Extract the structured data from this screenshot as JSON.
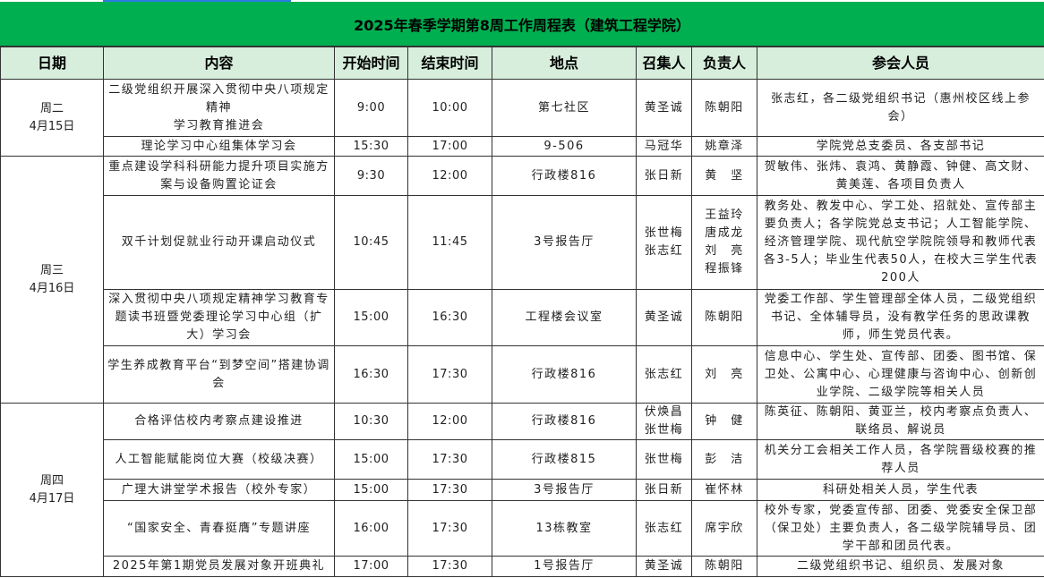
{
  "title": "2025年春季学期第8周工作周程表（建筑工程学院）",
  "headers": [
    "日期",
    "内容",
    "开始时间",
    "结束时间",
    "地点",
    "召集人",
    "负责人",
    "参会人员"
  ],
  "colors": {
    "title_bg": "#00b050",
    "header_bg": "#d6eedb",
    "selection": "#2a7be4"
  },
  "days": [
    {
      "date": "周二\n4月15日",
      "rows": [
        {
          "content": "二级党组织开展深入贯彻中央八项规定精神\n学习教育推进会",
          "start": "9:00",
          "end": "10:00",
          "place": "第七社区",
          "convener": "黄圣诚",
          "lead": "陈朝阳",
          "attendees": "张志红，各二级党组织书记（惠州校区线上参会）"
        },
        {
          "content": "理论学习中心组集体学习会",
          "start": "15:30",
          "end": "17:00",
          "place": "9-506",
          "convener": "马冠华",
          "lead": "姚章泽",
          "attendees": "学院党总支委员、各支部书记"
        }
      ]
    },
    {
      "date": "周三\n4月16日",
      "rows": [
        {
          "content": "重点建设学科科研能力提升项目实施方案与设备购置论证会",
          "start": "9:30",
          "end": "12:00",
          "place": "行政楼816",
          "convener": "张日新",
          "lead": "黄　坚",
          "attendees": "贺敏伟、张炜、袁鸿、黄静霞、钟健、高文财、黄美莲、各项目负责人"
        },
        {
          "content": "双千计划促就业行动开课启动仪式",
          "start": "10:45",
          "end": "11:45",
          "place": "3号报告厅",
          "convener": "张世梅\n张志红",
          "lead": "王益玲\n唐成龙\n刘　亮\n程振锋",
          "attendees": "教务处、教发中心、学工处、招就处、宣传部主要负责人；各学院党总支书记；人工智能学院、经济管理学院、现代航空学院院领导和教师代表各3-5人；毕业生代表50人，在校大三学生代表200人"
        },
        {
          "content": "深入贯彻中央八项规定精神学习教育专题读书班暨党委理论学习中心组（扩大）学习会",
          "start": "15:00",
          "end": "16:30",
          "place": "工程楼会议室",
          "convener": "黄圣诚",
          "lead": "陈朝阳",
          "attendees": "党委工作部、学生管理部全体人员，二级党组织书记、全体辅导员，没有教学任务的思政课教师，师生党员代表。"
        },
        {
          "content": "学生养成教育平台“到梦空间”搭建协调会",
          "start": "16:30",
          "end": "17:30",
          "place": "行政楼816",
          "convener": "张志红",
          "lead": "刘　亮",
          "attendees": "信息中心、学生处、宣传部、团委、图书馆、保卫处、公寓中心、心理健康与咨询中心、创新创业学院、二级学院等相关人员"
        }
      ]
    },
    {
      "date": "周四\n4月17日",
      "rows": [
        {
          "content": "合格评估校内考察点建设推进",
          "start": "10:30",
          "end": "12:00",
          "place": "行政楼816",
          "convener": "伏焕昌\n张世梅",
          "lead": "钟　健",
          "attendees": "陈英征、陈朝阳、黄亚兰，校内考察点负责人、联络员、解说员"
        },
        {
          "content": "人工智能赋能岗位大赛（校级决赛）",
          "start": "15:00",
          "end": "17:30",
          "place": "行政楼815",
          "convener": "张世梅",
          "lead": "彭　洁",
          "attendees": "机关分工会相关工作人员，各学院晋级校赛的推荐人员"
        },
        {
          "content": "广理大讲堂学术报告（校外专家）",
          "start": "15:00",
          "end": "17:30",
          "place": "3号报告厅",
          "convener": "张日新",
          "lead": "崔怀林",
          "attendees": "科研处相关人员，学生代表"
        },
        {
          "content": "“国家安全、青春挺膺”专题讲座",
          "start": "16:00",
          "end": "17:30",
          "place": "13栋教室",
          "convener": "张志红",
          "lead": "席宇欣",
          "attendees": "校外专家，党委宣传部、团委、党委安全保卫部（保卫处）主要负责人，各二级学院辅导员、团学干部和团员代表。"
        },
        {
          "content": "2025年第1期党员发展对象开班典礼",
          "start": "17:00",
          "end": "17:30",
          "place": "1号报告厅",
          "convener": "黄圣诚",
          "lead": "陈朝阳",
          "attendees": "二级党组织书记、组织员、发展对象"
        }
      ]
    }
  ]
}
